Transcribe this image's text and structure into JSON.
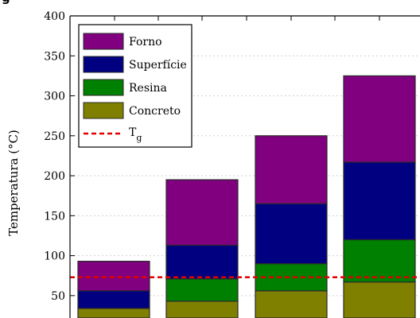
{
  "chart_data": {
    "type": "bar",
    "stacked": true,
    "title": "",
    "ylabel": "Temperatura (°C)",
    "ylim": [
      22,
      400
    ],
    "yticks": [
      50,
      100,
      150,
      200,
      250,
      300,
      350,
      400
    ],
    "grid": true,
    "legend_position": "top-left",
    "categories": [
      "",
      "",
      "",
      ""
    ],
    "series": [
      {
        "name": "Concreto",
        "color": "#808000",
        "values": [
          34,
          43,
          56,
          67
        ]
      },
      {
        "name": "Resina",
        "color": "#008000",
        "values": [
          0,
          28,
          34,
          53
        ]
      },
      {
        "name": "Superfície",
        "color": "#000080",
        "values": [
          22,
          42,
          75,
          97
        ]
      },
      {
        "name": "Forno",
        "color": "#800080",
        "values": [
          37,
          82,
          85,
          108
        ]
      }
    ],
    "reference_line": {
      "name": "T",
      "subscript": "g",
      "value": 73,
      "color": "#e00000",
      "style": "dashed"
    }
  }
}
